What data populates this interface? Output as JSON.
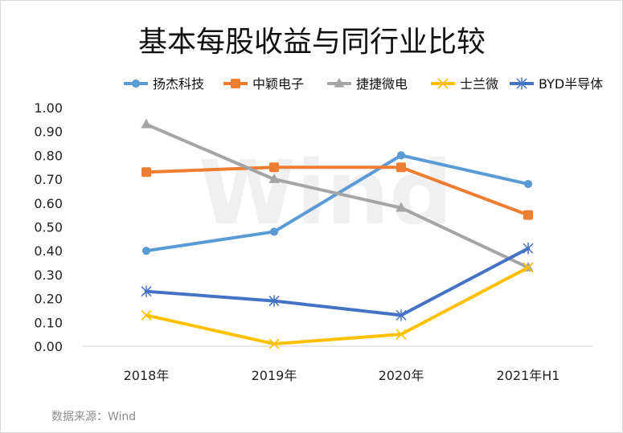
{
  "chart_data": {
    "type": "line",
    "title": "基本每股收益与同行业比较",
    "categories": [
      "2018年",
      "2019年",
      "2020年",
      "2021年H1"
    ],
    "ylim": [
      0,
      1.0
    ],
    "yticks": [
      "0.00",
      "0.10",
      "0.20",
      "0.30",
      "0.40",
      "0.50",
      "0.60",
      "0.70",
      "0.80",
      "0.90",
      "1.00"
    ],
    "grid": false,
    "legend_position": "top",
    "series": [
      {
        "name": "扬杰科技",
        "values": [
          0.4,
          0.48,
          0.8,
          0.68
        ],
        "color": "#5B9BD5",
        "marker": "circle"
      },
      {
        "name": "中颖电子",
        "values": [
          0.73,
          0.75,
          0.75,
          0.55
        ],
        "color": "#ED7D31",
        "marker": "square"
      },
      {
        "name": "捷捷微电",
        "values": [
          0.93,
          0.7,
          0.58,
          0.33
        ],
        "color": "#A5A5A5",
        "marker": "triangle"
      },
      {
        "name": "士兰微",
        "values": [
          0.13,
          0.01,
          0.05,
          0.33
        ],
        "color": "#FFC000",
        "marker": "x"
      },
      {
        "name": "BYD半导体",
        "values": [
          0.23,
          0.19,
          0.13,
          0.41
        ],
        "color": "#4472C4",
        "marker": "star"
      }
    ],
    "watermark": "Wind",
    "source": "数据来源：Wind"
  }
}
